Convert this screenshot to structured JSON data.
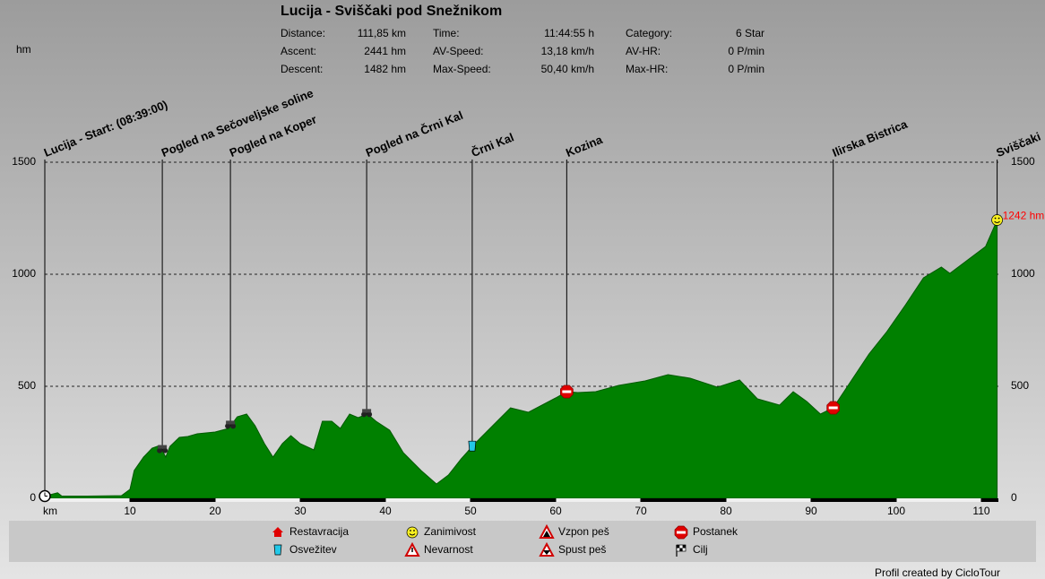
{
  "chart_data": {
    "type": "area",
    "title": "Lucija - Sviščaki pod Snežnikom",
    "stats": [
      {
        "label": "Distance:",
        "value": "111,85 km"
      },
      {
        "label": "Ascent:",
        "value": "2441 hm"
      },
      {
        "label": "Descent:",
        "value": "1482 hm"
      },
      {
        "label": "Time:",
        "value": "11:44:55 h"
      },
      {
        "label": "AV-Speed:",
        "value": "13,18 km/h"
      },
      {
        "label": "Max-Speed:",
        "value": "50,40 km/h"
      },
      {
        "label": "Category:",
        "value": "6 Star"
      },
      {
        "label": "AV-HR:",
        "value": "0 P/min"
      },
      {
        "label": "Max-HR:",
        "value": "0 P/min"
      }
    ],
    "y_label": "hm",
    "x_label": "km",
    "color": "#008000",
    "grid": true,
    "xlim": [
      0,
      112
    ],
    "xticks": [
      10,
      20,
      30,
      40,
      50,
      60,
      70,
      80,
      90,
      100,
      110
    ],
    "ylim": [
      0,
      1500
    ],
    "yticks": [
      0,
      500,
      1000,
      1500
    ],
    "x": [
      0,
      1.5,
      2,
      5,
      9,
      10,
      10.5,
      11.6,
      12.6,
      13.5,
      14.2,
      14.7,
      15.8,
      16.8,
      17.9,
      20,
      21.6,
      22.6,
      23.7,
      24.7,
      25.8,
      26.8,
      27.9,
      28.9,
      30,
      31.6,
      32.6,
      33.7,
      34.7,
      35.8,
      36.8,
      37.9,
      38.9,
      40.5,
      42.1,
      44.2,
      46,
      47.4,
      48.9,
      50.5,
      52.6,
      54.7,
      56.8,
      58.4,
      60,
      61.3,
      62.6,
      64.7,
      67.4,
      70.5,
      73.2,
      75.8,
      79,
      81.6,
      83.7,
      86.3,
      87.9,
      89.5,
      91.1,
      92.6,
      94.7,
      96.8,
      98.9,
      101.1,
      103.2,
      105.3,
      106.3,
      108.4,
      110.5,
      111.85
    ],
    "values": [
      10,
      25,
      10,
      10,
      12,
      40,
      124,
      184,
      224,
      236,
      184,
      232,
      272,
      276,
      288,
      296,
      312,
      364,
      376,
      324,
      244,
      184,
      244,
      280,
      244,
      216,
      344,
      344,
      312,
      376,
      360,
      376,
      344,
      304,
      204,
      124,
      64,
      104,
      176,
      244,
      324,
      404,
      384,
      416,
      448,
      476,
      472,
      476,
      504,
      524,
      552,
      536,
      496,
      528,
      444,
      416,
      476,
      432,
      376,
      404,
      524,
      644,
      744,
      864,
      984,
      1032,
      1004,
      1064,
      1124,
      1242
    ],
    "annotations": [
      {
        "x": 111.85,
        "y": 1242,
        "label": "1242 hm"
      }
    ],
    "waypoints": [
      {
        "name": "Lucija - Start: (08:39:00)",
        "x": 0,
        "icon": "start"
      },
      {
        "name": "Pogled na Sečoveljske soline",
        "x": 13.8,
        "icon": "view"
      },
      {
        "name": "Pogled na Koper",
        "x": 21.8,
        "icon": "view"
      },
      {
        "name": "Pogled na Črni Kal",
        "x": 37.8,
        "icon": "view"
      },
      {
        "name": "Črni Kal",
        "x": 50.2,
        "icon": "refresh"
      },
      {
        "name": "Kozina",
        "x": 61.3,
        "icon": "stop"
      },
      {
        "name": "Ilirska Bistrica",
        "x": 92.6,
        "icon": "stop"
      },
      {
        "name": "Sviščaki",
        "x": 111.85,
        "icon": "poi"
      }
    ],
    "legend": [
      {
        "name": "Restavracija",
        "icon": "restaurant"
      },
      {
        "name": "Osvežitev",
        "icon": "refresh"
      },
      {
        "name": "Zanimivost",
        "icon": "poi"
      },
      {
        "name": "Nevarnost",
        "icon": "danger"
      },
      {
        "name": "Vzpon peš",
        "icon": "up"
      },
      {
        "name": "Spust peš",
        "icon": "down"
      },
      {
        "name": "Postanek",
        "icon": "stop"
      },
      {
        "name": "Cilj",
        "icon": "finish"
      }
    ],
    "credit": "Profil created by CicloTour"
  }
}
